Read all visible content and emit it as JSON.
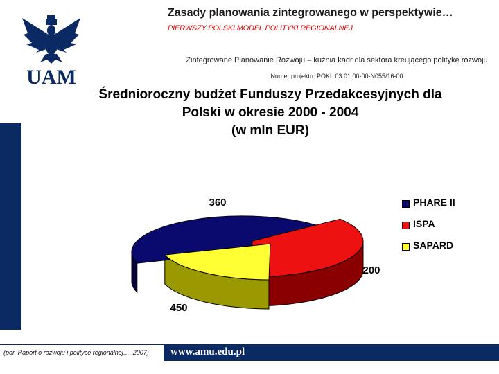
{
  "header": {
    "title": "Zasady planowania zintegrowanego w perspektywie…",
    "subtitle": "PIERWSZY POLSKI MODEL POLITYKI REGIONALNEJ",
    "project_name": "Zintegrowane Planowanie Rozwoju – kuźnia kadr dla sektora kreującego politykę rozwoju",
    "project_number": "Numer projektu: POKL.03.01.00-00-N055/16-00"
  },
  "logo": {
    "text": "UAM",
    "icon": "university-eagle-crest-icon"
  },
  "colors": {
    "brand_navy": "#0b2a63",
    "accent_red": "#d40000"
  },
  "chart_data": {
    "type": "pie",
    "style": "3d-exploded",
    "title_lines": [
      "Średnioroczny budżet Funduszy Przedakcesyjnych dla",
      "Polski w okresie 2000 - 2004",
      "(w mln EUR)"
    ],
    "labels": [
      "PHARE II",
      "ISPA",
      "SAPARD"
    ],
    "values": [
      450,
      360,
      200
    ],
    "value_labels": [
      "450",
      "360",
      "200"
    ],
    "colors": [
      "#0a0a6e",
      "#ee1111",
      "#ffff33"
    ],
    "legend_position": "right"
  },
  "footer": {
    "source": "(por. Raport o rozwoju i polityce regionalnej…, 2007)",
    "url": "www.amu.edu.pl"
  }
}
